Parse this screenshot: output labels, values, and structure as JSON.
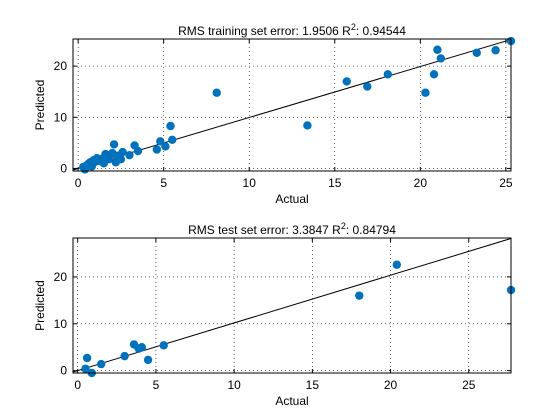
{
  "chart_data": [
    {
      "type": "scatter",
      "title": "RMS training set error: 1.9506  R²: 0.94544",
      "title_parts": [
        "RMS training set error: 1.9506  R",
        "2",
        ": 0.94544"
      ],
      "xlabel": "Actual",
      "ylabel": "Predicted",
      "xlim": [
        -0.3,
        25.3
      ],
      "ylim": [
        -0.5,
        25.3
      ],
      "xticks": [
        0,
        5,
        10,
        15,
        20,
        25
      ],
      "yticks": [
        0,
        10,
        20
      ],
      "grid": true,
      "fit_line": {
        "x": [
          -0.3,
          25.3
        ],
        "y": [
          -0.3,
          25.2
        ]
      },
      "marker_color": "#0072BD",
      "x": [
        0.3,
        0.4,
        0.5,
        0.6,
        0.7,
        0.8,
        0.9,
        1.0,
        1.1,
        1.2,
        1.4,
        1.5,
        1.6,
        1.8,
        2.0,
        2.1,
        2.2,
        2.3,
        2.5,
        2.6,
        3.0,
        3.3,
        3.5,
        4.6,
        4.8,
        5.1,
        5.4,
        5.5,
        8.1,
        13.4,
        15.7,
        16.9,
        18.1,
        20.3,
        20.8,
        21.0,
        21.2,
        23.3,
        24.4,
        25.3
      ],
      "y": [
        0.3,
        -0.2,
        0.6,
        0.9,
        1.2,
        0.4,
        1.6,
        1.3,
        2.0,
        1.5,
        1.9,
        1.0,
        2.8,
        1.8,
        3.0,
        4.7,
        1.2,
        2.5,
        1.8,
        3.2,
        2.6,
        4.5,
        3.4,
        3.7,
        5.3,
        4.3,
        8.3,
        5.6,
        14.8,
        8.4,
        17.0,
        16.0,
        18.4,
        14.8,
        18.4,
        23.2,
        21.5,
        22.6,
        23.1,
        24.9
      ]
    },
    {
      "type": "scatter",
      "title": "RMS test set error: 3.3847  R²: 0.84794",
      "title_parts": [
        "RMS test set error: 3.3847  R",
        "2",
        ": 0.84794"
      ],
      "xlabel": "Actual",
      "ylabel": "Predicted",
      "xlim": [
        -0.3,
        27.7
      ],
      "ylim": [
        -0.5,
        28.3
      ],
      "xticks": [
        0,
        5,
        10,
        15,
        20,
        25
      ],
      "yticks": [
        0,
        10,
        20
      ],
      "grid": true,
      "fit_line": {
        "x": [
          -0.3,
          27.7
        ],
        "y": [
          -0.3,
          28.2
        ]
      },
      "marker_color": "#0072BD",
      "x": [
        0.5,
        0.6,
        0.9,
        1.5,
        3.0,
        3.6,
        3.9,
        4.1,
        4.5,
        5.5,
        18.0,
        20.4,
        27.7
      ],
      "y": [
        0.4,
        2.7,
        -0.5,
        1.4,
        3.1,
        5.6,
        4.7,
        5.0,
        2.3,
        5.4,
        16.0,
        22.6,
        17.2
      ]
    }
  ]
}
